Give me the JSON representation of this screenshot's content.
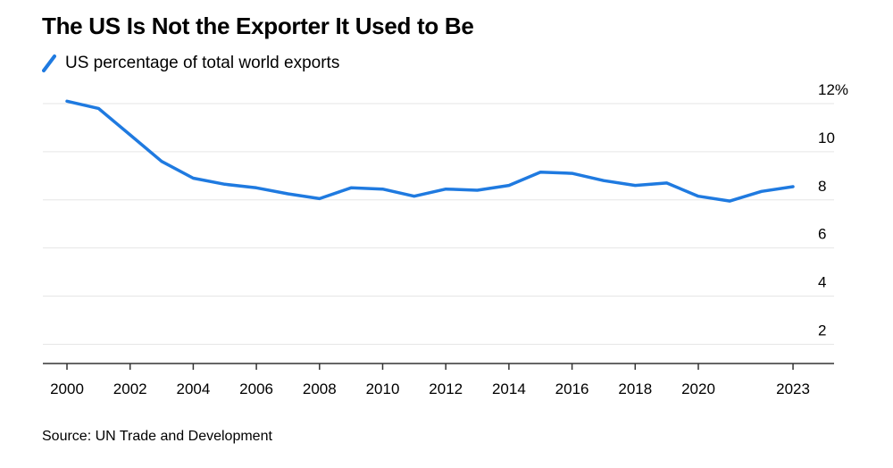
{
  "title": "The US Is Not the Exporter It Used to Be",
  "source": "Source: UN Trade and Development",
  "chart_data": {
    "type": "line",
    "title": "The US Is Not the Exporter It Used to Be",
    "xlabel": "",
    "ylabel": "",
    "ylim": [
      1.2,
      12
    ],
    "xlim": [
      2000,
      2024.3
    ],
    "x": [
      2000,
      2001,
      2002,
      2003,
      2004,
      2005,
      2006,
      2007,
      2008,
      2009,
      2010,
      2011,
      2012,
      2013,
      2014,
      2015,
      2016,
      2017,
      2018,
      2019,
      2020,
      2021,
      2022,
      2023
    ],
    "x_ticks": [
      2000,
      2002,
      2004,
      2006,
      2008,
      2010,
      2012,
      2014,
      2016,
      2018,
      2020,
      2023
    ],
    "x_tick_labels": [
      "2000",
      "2002",
      "2004",
      "2006",
      "2008",
      "2010",
      "2012",
      "2014",
      "2016",
      "2018",
      "2020",
      "2023"
    ],
    "y_ticks": [
      2,
      4,
      6,
      8,
      10,
      12
    ],
    "y_tick_labels": [
      "2",
      "4",
      "6",
      "8",
      "10",
      "12%"
    ],
    "grid": true,
    "legend_position": "top-left",
    "series": [
      {
        "name": "US percentage of total world exports",
        "color": "#1f7ae0",
        "values": [
          12.1,
          11.8,
          10.7,
          9.6,
          8.9,
          8.65,
          8.5,
          8.25,
          8.05,
          8.5,
          8.45,
          8.15,
          8.45,
          8.4,
          8.6,
          9.15,
          9.1,
          8.8,
          8.6,
          8.7,
          8.15,
          7.95,
          8.35,
          8.55
        ]
      }
    ]
  }
}
